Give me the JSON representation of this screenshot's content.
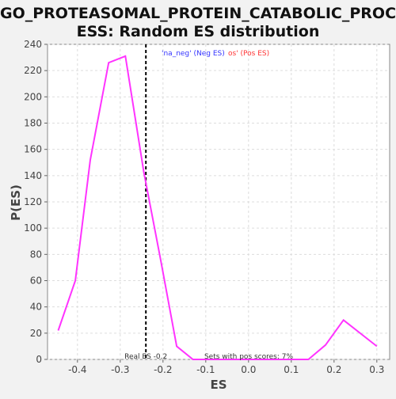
{
  "chart_data": {
    "type": "line",
    "title_line1": "GO_PROTEASOMAL_PROTEIN_CATABOLIC_PROC",
    "title_line2": "ESS: Random ES distribution",
    "xlabel": "ES",
    "ylabel": "P(ES)",
    "xlim": [
      -0.47,
      0.33
    ],
    "ylim": [
      0,
      240
    ],
    "x_ticks": [
      -0.4,
      -0.3,
      -0.2,
      -0.1,
      0.0,
      0.1,
      0.2,
      0.3
    ],
    "x_tick_labels": [
      "-0.4",
      "-0.3",
      "-0.2",
      "-0.1",
      "0.0",
      "0.1",
      "0.2",
      "0.3"
    ],
    "y_ticks": [
      0,
      20,
      40,
      60,
      80,
      100,
      120,
      140,
      160,
      180,
      200,
      220,
      240
    ],
    "grid": true,
    "series": [
      {
        "name": "'na_neg' (Neg ES)",
        "color": "#3333ff",
        "x": [],
        "values": []
      },
      {
        "name": "'na_pos' (Pos ES)",
        "color": "#ff3333",
        "x": [],
        "values": []
      },
      {
        "color": "#ff33ff",
        "x": [
          -0.445,
          -0.405,
          -0.37,
          -0.327,
          -0.288,
          -0.245,
          -0.205,
          -0.168,
          -0.13,
          0.14,
          0.18,
          0.222,
          0.3
        ],
        "values": [
          22,
          60,
          152,
          226,
          231,
          143,
          75,
          10,
          0,
          0,
          11,
          30,
          10
        ]
      }
    ],
    "real_es": {
      "x": -0.24,
      "label": "Real ES -0.2",
      "color": "#000000"
    },
    "annotation": "Sets with pos scores: 7%",
    "legend_text_neg": "'na_neg' (Neg ES)",
    "legend_text_pos": "os' (Pos ES)"
  }
}
